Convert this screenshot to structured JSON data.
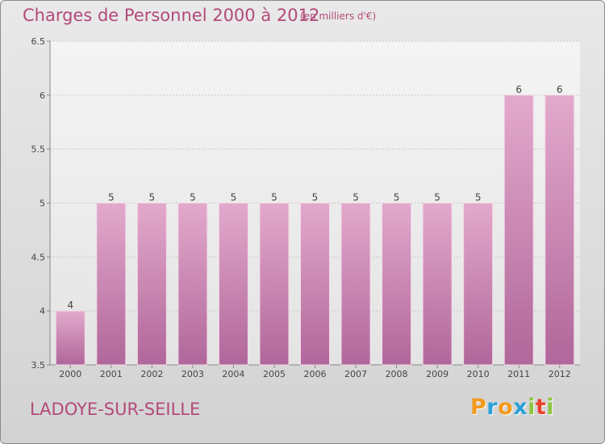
{
  "title": "Charges de Personnel 2000 à 2012",
  "subtitle": "(en milliers d'€)",
  "commune": "LADOYE-SUR-SEILLE",
  "logo": {
    "letters": [
      "P",
      "r",
      "o",
      "x",
      "i",
      "t",
      "i"
    ],
    "colors": [
      "#f39a1c",
      "#2aa0d8",
      "#f39a1c",
      "#2aa0d8",
      "#8cc63f",
      "#e8412c",
      "#8cc63f"
    ]
  },
  "colors": {
    "bar_top": "#e3a9cc",
    "bar_bottom": "#b0679a",
    "accent": "#b24a7a"
  },
  "chart_data": {
    "type": "bar",
    "title": "Charges de Personnel 2000 à 2012",
    "subtitle": "(en milliers d'€)",
    "categories": [
      "2000",
      "2001",
      "2002",
      "2003",
      "2004",
      "2005",
      "2006",
      "2007",
      "2008",
      "2009",
      "2010",
      "2011",
      "2012"
    ],
    "values": [
      4,
      5,
      5,
      5,
      5,
      5,
      5,
      5,
      5,
      5,
      5,
      6,
      6
    ],
    "ylim": [
      3.5,
      6.5
    ],
    "yticks": [
      "3.5",
      "4",
      "4.5",
      "5",
      "5.5",
      "6",
      "6.5"
    ],
    "grid": true,
    "xlabel": "",
    "ylabel": ""
  }
}
